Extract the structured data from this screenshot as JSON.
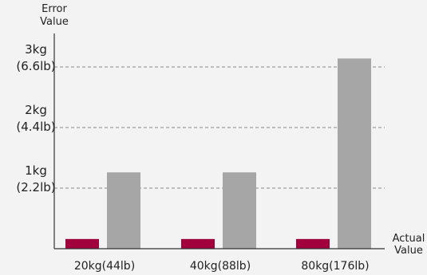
{
  "chart_data": {
    "type": "bar",
    "title": "",
    "ylabel": [
      "Error",
      "Value"
    ],
    "xlabel": [
      "Actual",
      "Value"
    ],
    "categories": [
      "20kg(44lb)",
      "40kg(88lb)",
      "80kg(176lb)"
    ],
    "ylim": [
      0,
      3.13
    ],
    "yticks": [
      {
        "value": 1,
        "lines": [
          "1kg",
          "(2.2lb)"
        ]
      },
      {
        "value": 2,
        "lines": [
          "2kg",
          "(4.4lb)"
        ]
      },
      {
        "value": 3,
        "lines": [
          "3kg",
          "(6.6lb)"
        ]
      }
    ],
    "grid": "dashed horizontal at ticks",
    "series": [
      {
        "color": "#a0003c",
        "values": [
          0.16,
          0.16,
          0.16
        ]
      },
      {
        "color": "#a6a6a6",
        "values": [
          1.26,
          1.26,
          3.14
        ]
      }
    ],
    "legend": "none"
  },
  "colors": {
    "background": "#f3f3f3",
    "axis": "#333333",
    "grid": "#888888"
  }
}
